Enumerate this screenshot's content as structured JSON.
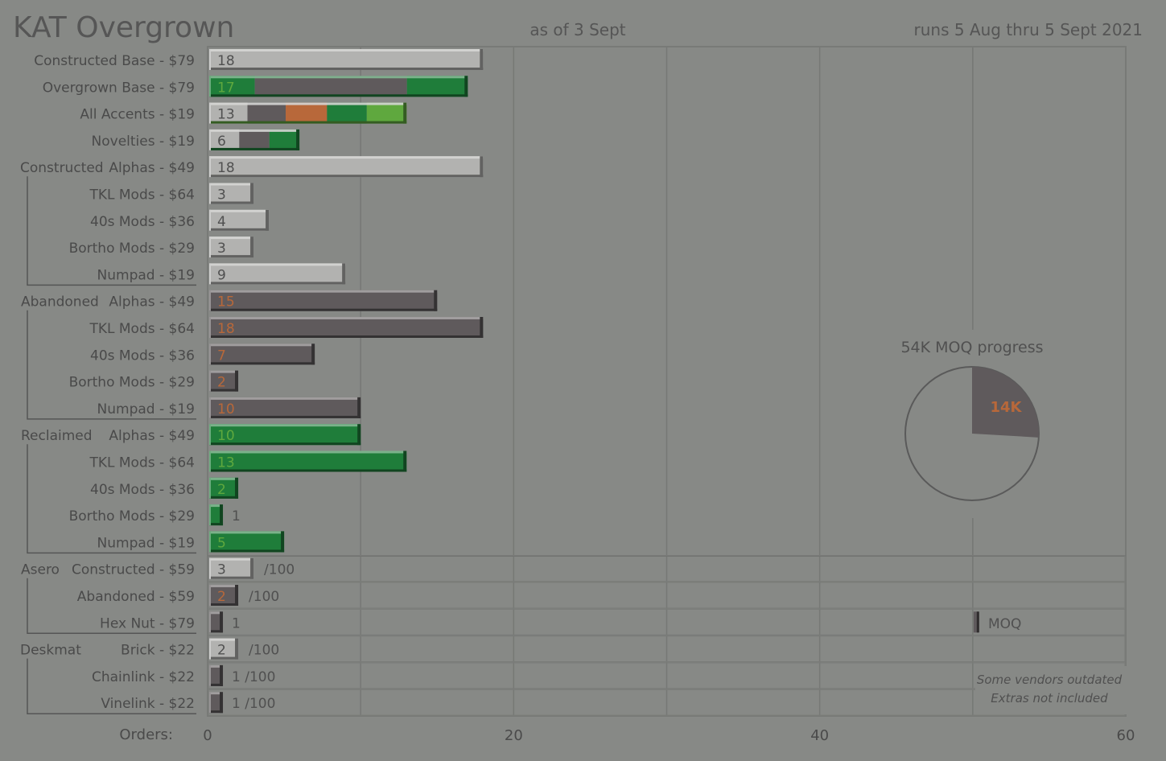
{
  "title": "KAT Overgrown",
  "as_of": "as of 3 Sept",
  "runs": "runs 5 Aug thru 5 Sept 2021",
  "pie": {
    "title": "54K MOQ progress",
    "label": "14K",
    "value": 14,
    "total": 54
  },
  "note": {
    "line1": "Some vendors outdated",
    "line2": "Extras not included"
  },
  "moq_label": "MOQ",
  "orders_label": "Orders:",
  "colors": {
    "background": "#878986",
    "light_bar": "#b2b2b0",
    "dark_bar": "#5f5a5c",
    "green": "#1f7d3a",
    "light_green": "#5fa83e",
    "orange": "#b8683a",
    "label": "#4a4a4a"
  },
  "chart_data": {
    "type": "bar",
    "orientation": "horizontal",
    "xlabel": "Orders:",
    "xlim": [
      0,
      60
    ],
    "x_ticks": [
      "0",
      "20",
      "40",
      "60"
    ],
    "grid": true,
    "moq_marker": 50,
    "groups": [
      {
        "name": "",
        "rows": [
          0,
          1,
          2,
          3
        ]
      },
      {
        "name": "Constructed",
        "rows": [
          4,
          5,
          6,
          7,
          8
        ]
      },
      {
        "name": "Abandoned",
        "rows": [
          9,
          10,
          11,
          12,
          13
        ]
      },
      {
        "name": "Reclaimed",
        "rows": [
          14,
          15,
          16,
          17,
          18
        ]
      },
      {
        "name": "Asero",
        "rows": [
          19,
          20,
          21
        ]
      },
      {
        "name": "Deskmat",
        "rows": [
          22,
          23,
          24
        ]
      }
    ],
    "rows": [
      {
        "label": "Constructed Base - $79",
        "value": 18,
        "display": "18",
        "segments": [
          [
            "light",
            18
          ]
        ]
      },
      {
        "label": "Overgrown Base - $79",
        "value": 17,
        "display": "17",
        "value_color": "green",
        "segments": [
          [
            "green",
            3
          ],
          [
            "dark",
            10
          ],
          [
            "green",
            4
          ]
        ]
      },
      {
        "label": "All Accents - $19",
        "value": 13,
        "display": "13",
        "segments": [
          [
            "light",
            2.5
          ],
          [
            "dark",
            2.5
          ],
          [
            "orange",
            2.7
          ],
          [
            "green",
            2.6
          ],
          [
            "lightgreen",
            2.6
          ]
        ]
      },
      {
        "label": "Novelties - $19",
        "value": 6,
        "display": "6",
        "segments": [
          [
            "light",
            2
          ],
          [
            "dark",
            2
          ],
          [
            "green",
            2
          ]
        ]
      },
      {
        "label": "Alphas - $49",
        "value": 18,
        "display": "18",
        "segments": [
          [
            "light",
            18
          ]
        ]
      },
      {
        "label": "TKL Mods - $64",
        "value": 3,
        "display": "3",
        "segments": [
          [
            "light",
            3
          ]
        ]
      },
      {
        "label": "40s Mods - $36",
        "value": 4,
        "display": "4",
        "segments": [
          [
            "light",
            4
          ]
        ]
      },
      {
        "label": "Bortho Mods - $29",
        "value": 3,
        "display": "3",
        "segments": [
          [
            "light",
            3
          ]
        ]
      },
      {
        "label": "Numpad - $19",
        "value": 9,
        "display": "9",
        "segments": [
          [
            "light",
            9
          ]
        ]
      },
      {
        "label": "Alphas - $49",
        "value": 15,
        "display": "15",
        "value_color": "orange",
        "segments": [
          [
            "dark",
            15
          ]
        ]
      },
      {
        "label": "TKL Mods - $64",
        "value": 18,
        "display": "18",
        "value_color": "orange",
        "segments": [
          [
            "dark",
            18
          ]
        ]
      },
      {
        "label": "40s Mods - $36",
        "value": 7,
        "display": "7",
        "value_color": "orange",
        "segments": [
          [
            "dark",
            7
          ]
        ]
      },
      {
        "label": "Bortho Mods - $29",
        "value": 2,
        "display": "2",
        "value_color": "orange",
        "segments": [
          [
            "dark",
            2
          ]
        ]
      },
      {
        "label": "Numpad - $19",
        "value": 10,
        "display": "10",
        "value_color": "orange",
        "segments": [
          [
            "dark",
            10
          ]
        ]
      },
      {
        "label": "Alphas - $49",
        "value": 10,
        "display": "10",
        "value_color": "lightgreen",
        "segments": [
          [
            "green",
            10
          ]
        ]
      },
      {
        "label": "TKL Mods - $64",
        "value": 13,
        "display": "13",
        "value_color": "lightgreen",
        "segments": [
          [
            "green",
            13
          ]
        ]
      },
      {
        "label": "40s Mods - $36",
        "value": 2,
        "display": "2",
        "value_color": "lightgreen",
        "segments": [
          [
            "green",
            2
          ]
        ]
      },
      {
        "label": "Bortho Mods - $29",
        "value": 1,
        "display": "1",
        "value_outside": true,
        "segments": [
          [
            "green",
            1
          ]
        ]
      },
      {
        "label": "Numpad - $19",
        "value": 5,
        "display": "5",
        "value_color": "lightgreen",
        "segments": [
          [
            "green",
            5
          ]
        ]
      },
      {
        "label": "Constructed - $59",
        "value": 3,
        "display": "3",
        "suffix": "/100",
        "segments": [
          [
            "light",
            3
          ]
        ]
      },
      {
        "label": "Abandoned - $59",
        "value": 2,
        "display": "2",
        "value_color": "orange",
        "suffix": "/100",
        "segments": [
          [
            "dark",
            2
          ]
        ]
      },
      {
        "label": "Hex Nut - $79",
        "value": 1,
        "display": "1",
        "value_outside": true,
        "segments": [
          [
            "dark",
            1
          ]
        ]
      },
      {
        "label": "Brick - $22",
        "value": 2,
        "display": "2",
        "suffix": "/100",
        "segments": [
          [
            "light",
            2
          ]
        ]
      },
      {
        "label": "Chainlink - $22",
        "value": 1,
        "display": "1 /100",
        "value_outside": true,
        "segments": [
          [
            "dark",
            1
          ]
        ]
      },
      {
        "label": "Vinelink - $22",
        "value": 1,
        "display": "1 /100",
        "value_outside": true,
        "segments": [
          [
            "dark",
            1
          ]
        ]
      }
    ]
  }
}
